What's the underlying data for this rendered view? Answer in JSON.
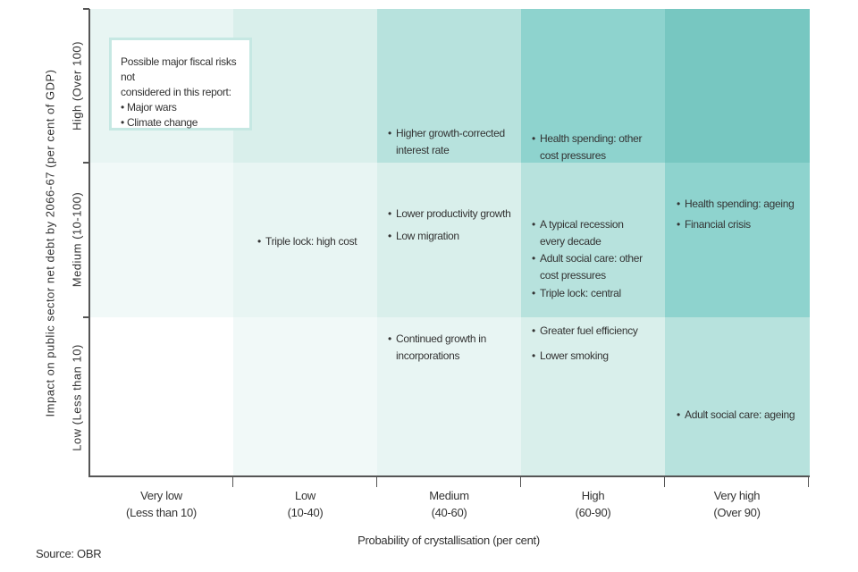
{
  "chart_data": {
    "type": "heatmap",
    "title": "",
    "xlabel": "Probability of crystallisation (per cent)",
    "ylabel": "Impact on public sector net debt by 2066-67 (per cent of GDP)",
    "x_categories": [
      {
        "name": "Very low",
        "range": "(Less than 10)"
      },
      {
        "name": "Low",
        "range": "(10-40)"
      },
      {
        "name": "Medium",
        "range": "(40-60)"
      },
      {
        "name": "High",
        "range": "(60-90)"
      },
      {
        "name": "Very high",
        "range": "(Over 90)"
      }
    ],
    "y_categories": [
      "Low (Less than 10)",
      "Medium (10-100)",
      "High (Over 100)"
    ],
    "shade_colors": [
      "#ffffff",
      "#f1f9f8",
      "#e8f5f3",
      "#d9efeb",
      "#b7e2dd",
      "#8ed3ce",
      "#77c7c1"
    ],
    "risks": [
      {
        "label": "Higher growth-corrected interest rate",
        "probability": "Medium",
        "impact": "High"
      },
      {
        "label": "Health spending: other cost pressures",
        "probability": "High",
        "impact": "High"
      },
      {
        "label": "Triple lock: high cost",
        "probability": "Low",
        "impact": "Medium"
      },
      {
        "label": "Lower productivity growth",
        "probability": "Medium",
        "impact": "Medium"
      },
      {
        "label": "Low migration",
        "probability": "Medium",
        "impact": "Medium"
      },
      {
        "label": "A typical recession every decade",
        "probability": "High",
        "impact": "Medium"
      },
      {
        "label": "Adult social care: other cost pressures",
        "probability": "High",
        "impact": "Medium"
      },
      {
        "label": "Triple lock: central",
        "probability": "High",
        "impact": "Medium"
      },
      {
        "label": "Health spending: ageing",
        "probability": "Very high",
        "impact": "Medium"
      },
      {
        "label": "Financial crisis",
        "probability": "Very high",
        "impact": "Medium"
      },
      {
        "label": "Continued growth in incorporations",
        "probability": "Medium",
        "impact": "Low"
      },
      {
        "label": "Greater fuel efficiency",
        "probability": "High",
        "impact": "Low"
      },
      {
        "label": "Lower smoking",
        "probability": "High",
        "impact": "Low"
      },
      {
        "label": "Adult social care: ageing",
        "probability": "Very high",
        "impact": "Low"
      }
    ],
    "note": {
      "heading_line1": "Possible major fiscal risks not",
      "heading_line2": "considered in this report:",
      "items": [
        "Major wars",
        "Climate change"
      ]
    },
    "source": "Source: OBR"
  }
}
